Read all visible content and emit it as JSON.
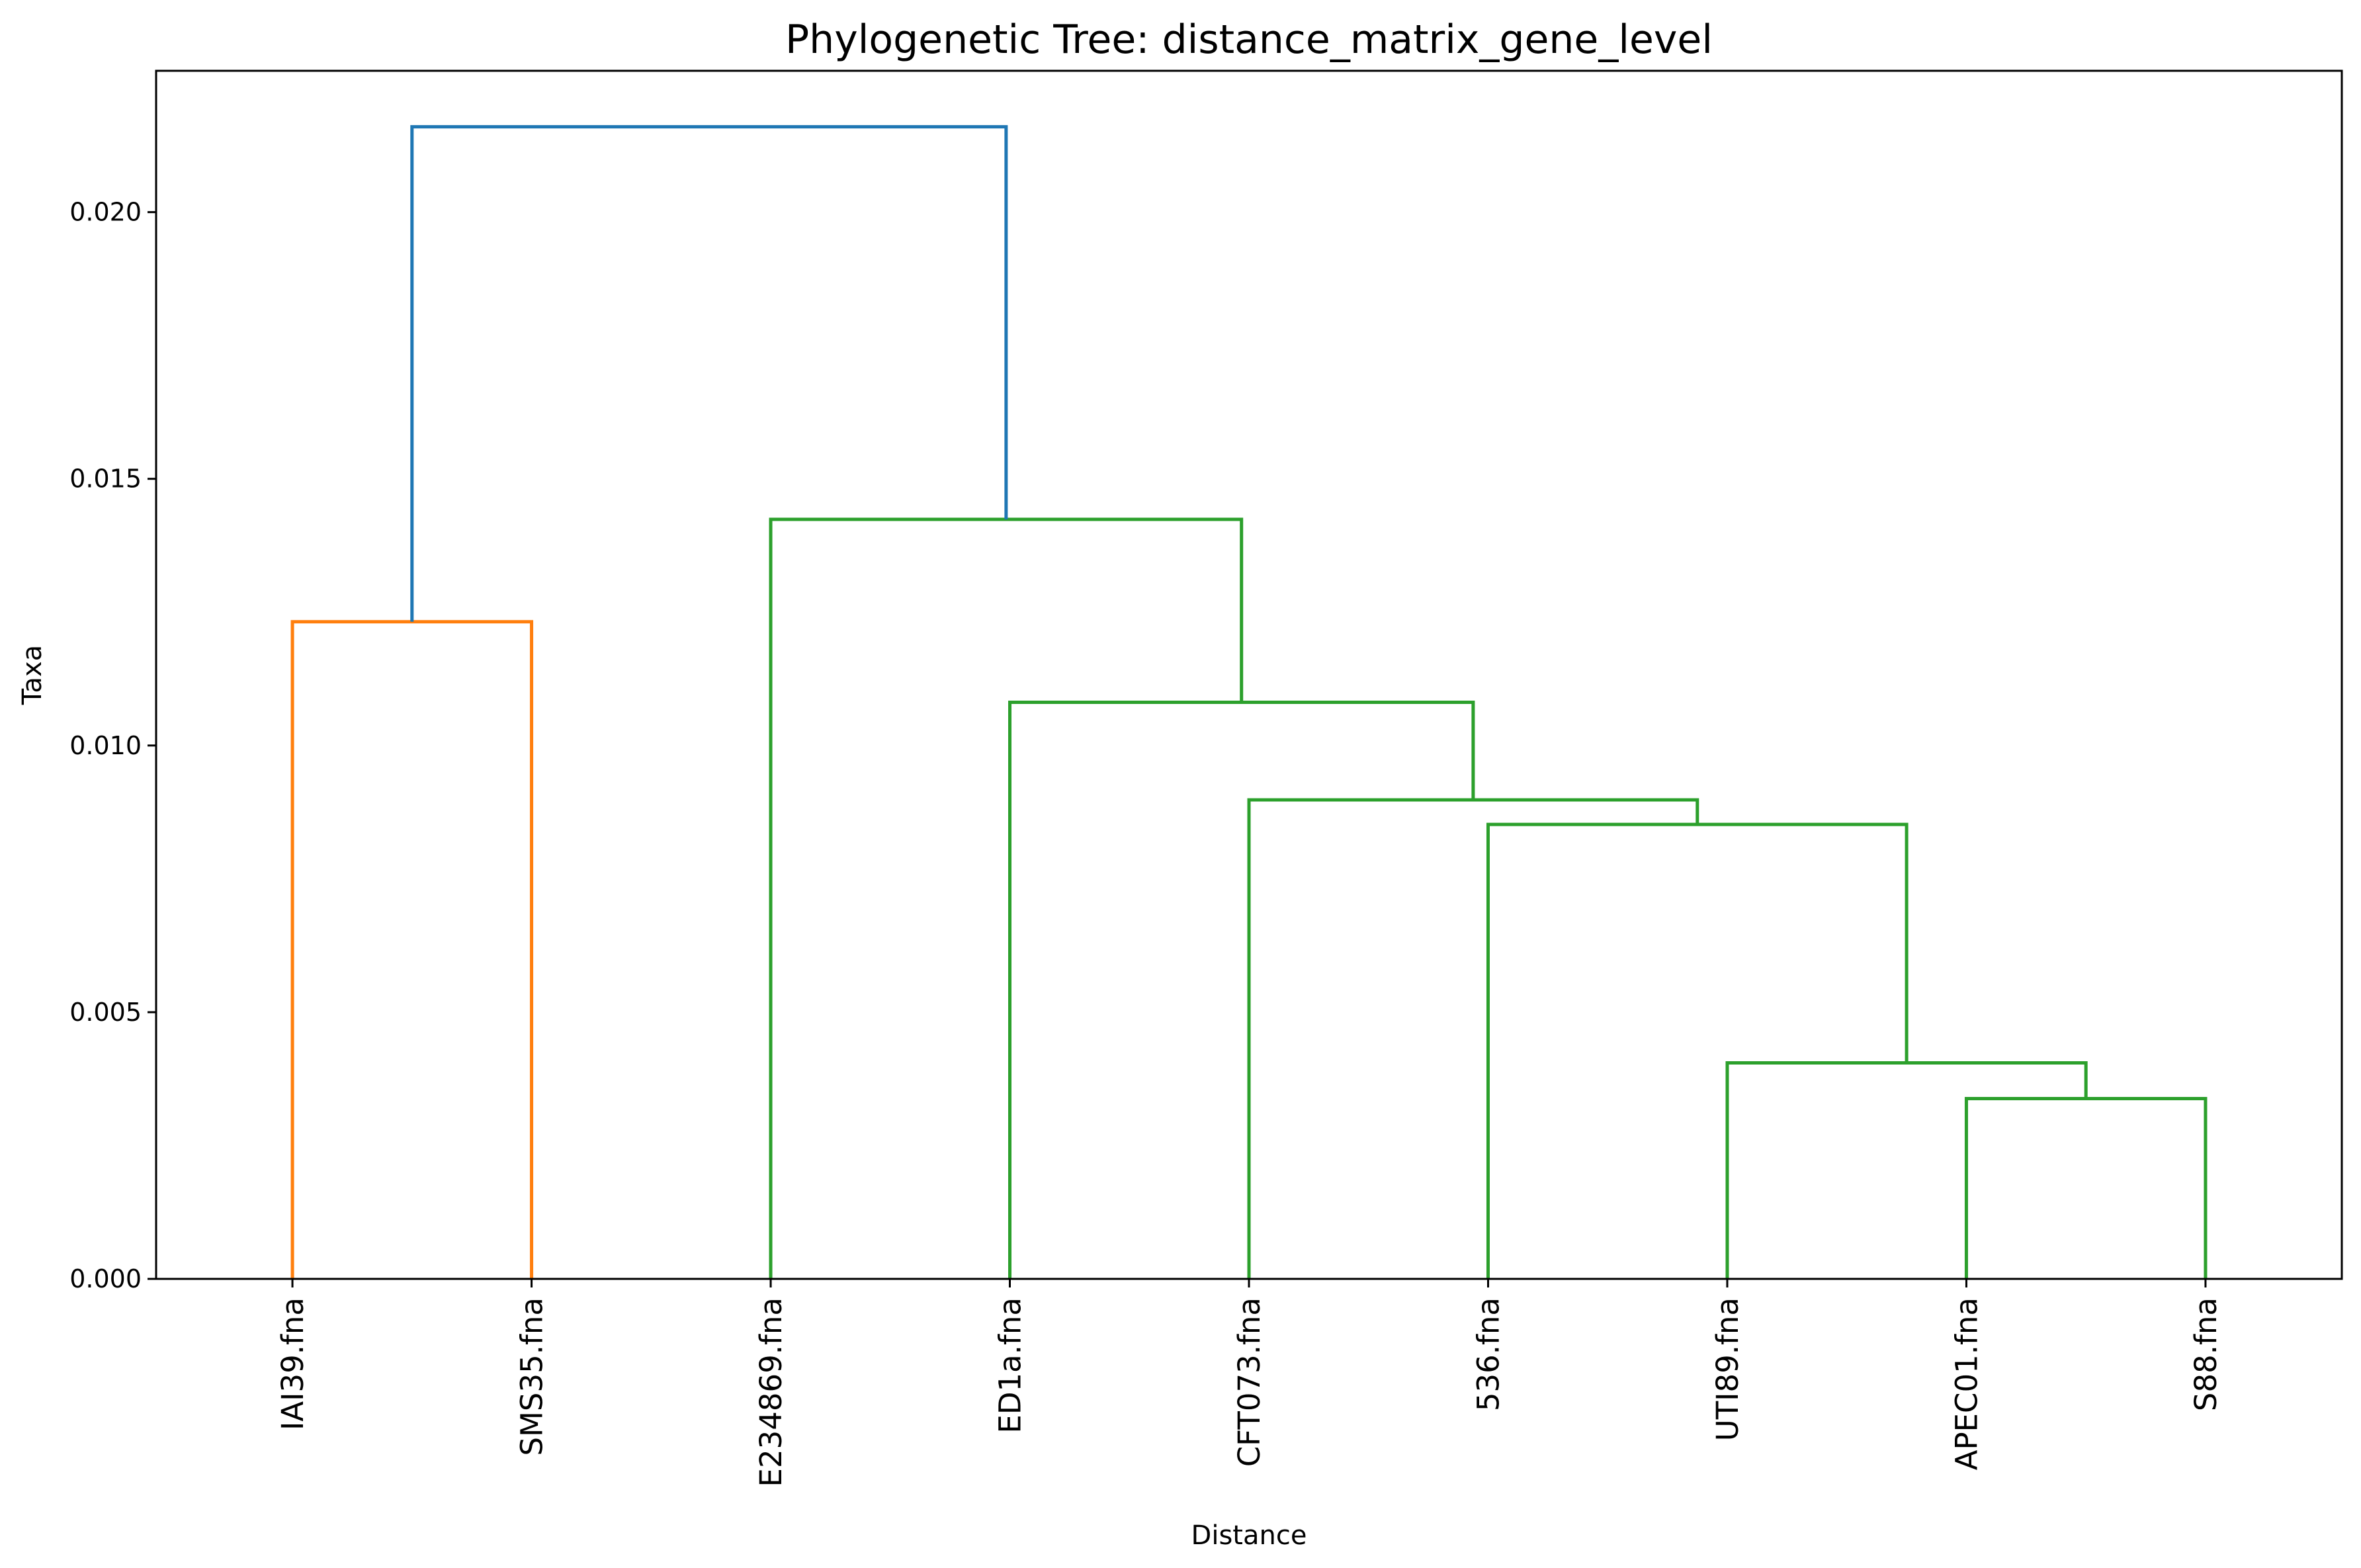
{
  "chart_data": {
    "type": "dendrogram",
    "title": "Phylogenetic Tree: distance_matrix_gene_level",
    "xlabel": "Distance",
    "ylabel": "Taxa",
    "ylim": [
      0,
      0.02265
    ],
    "yticks": [
      0.0,
      0.005,
      0.01,
      0.015,
      0.02
    ],
    "ytick_labels": [
      "0.000",
      "0.005",
      "0.010",
      "0.015",
      "0.020"
    ],
    "grid": false,
    "leaves": [
      "IAI39.fna",
      "SMS35.fna",
      "E234869.fna",
      "ED1a.fna",
      "CFT073.fna",
      "536.fna",
      "UTI89.fna",
      "APEC01.fna",
      "S88.fna"
    ],
    "colors": {
      "orange": "#ff7f0e",
      "green": "#2ca02c",
      "blue": "#1f77b4"
    },
    "merges": [
      {
        "id": "m1",
        "children": [
          "APEC01.fna",
          "S88.fna"
        ],
        "height": 0.00338,
        "color": "green"
      },
      {
        "id": "m2",
        "children": [
          "UTI89.fna",
          "m1"
        ],
        "height": 0.00405,
        "color": "green"
      },
      {
        "id": "m3",
        "children": [
          "536.fna",
          "m2"
        ],
        "height": 0.00852,
        "color": "green"
      },
      {
        "id": "m4",
        "children": [
          "CFT073.fna",
          "m3"
        ],
        "height": 0.00898,
        "color": "green"
      },
      {
        "id": "m5",
        "children": [
          "ED1a.fna",
          "m4"
        ],
        "height": 0.01081,
        "color": "green"
      },
      {
        "id": "m6",
        "children": [
          "IAI39.fna",
          "SMS35.fna"
        ],
        "height": 0.01232,
        "color": "orange"
      },
      {
        "id": "m7",
        "children": [
          "E234869.fna",
          "m5"
        ],
        "height": 0.01424,
        "color": "green"
      },
      {
        "id": "m8",
        "children": [
          "m6",
          "m7"
        ],
        "height": 0.0216,
        "color": "blue"
      }
    ]
  }
}
